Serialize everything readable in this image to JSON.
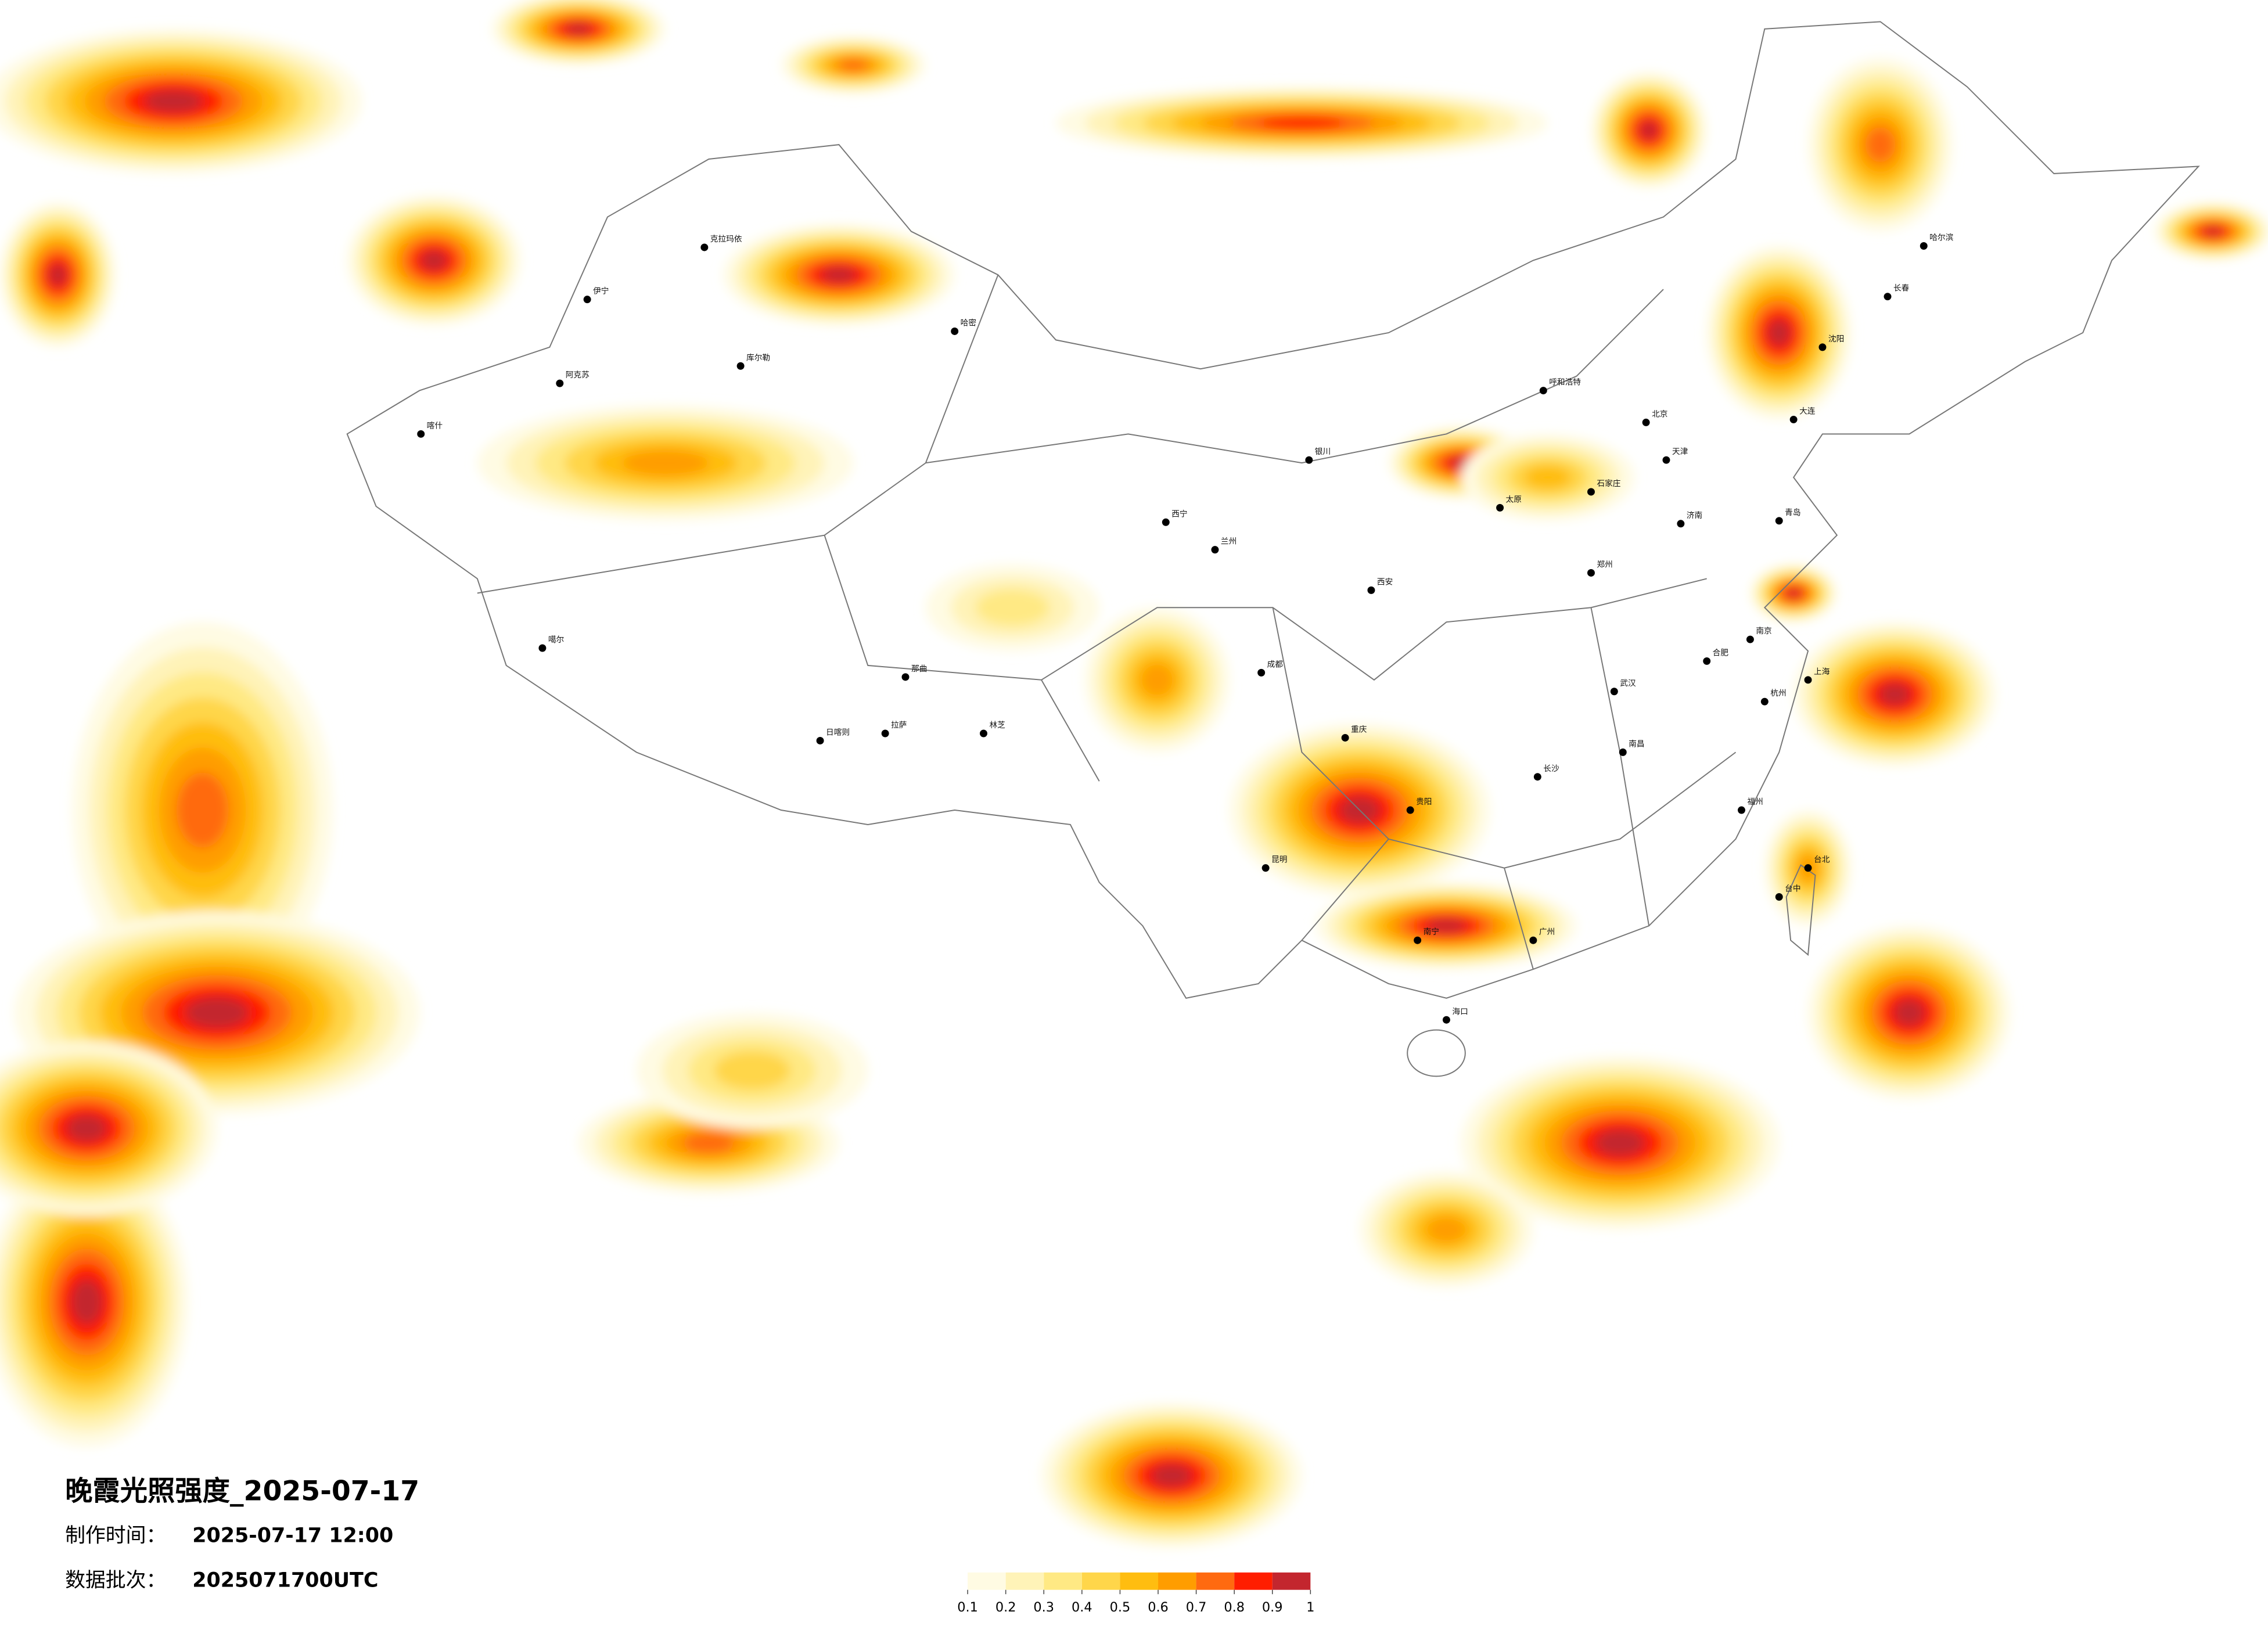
{
  "header": {
    "title": "晚霞光照强度_2025-07-17",
    "made_label": "制作时间：",
    "made_time": "2025-07-17 12:00",
    "batch_label": "数据批次：",
    "batch": "2025071700UTC"
  },
  "legend": {
    "ticks": [
      0.1,
      0.2,
      0.3,
      0.4,
      0.5,
      0.6,
      0.7,
      0.8,
      0.9,
      1
    ],
    "colors": [
      "#fffbe3",
      "#fff3b8",
      "#ffe984",
      "#ffd64a",
      "#ffbd10",
      "#ff9d00",
      "#ff6a10",
      "#ff1e00",
      "#c3262e"
    ]
  },
  "cities": [
    "克拉玛依",
    "伊宁",
    "阿克苏",
    "库尔勒",
    "哈密",
    "喀什",
    "噶尔",
    "日喀则",
    "拉萨",
    "那曲",
    "林芝",
    "西宁",
    "兰州",
    "银川",
    "呼和浩特",
    "北京",
    "天津",
    "石家庄",
    "太原",
    "西安",
    "郑州",
    "济南",
    "武汉",
    "长沙",
    "南昌",
    "合肥",
    "南京",
    "上海",
    "杭州",
    "福州",
    "广州",
    "南宁",
    "贵阳",
    "昆明",
    "成都",
    "重庆",
    "海口",
    "台北",
    "台中",
    "沈阳",
    "长春",
    "哈尔滨",
    "大连",
    "青岛"
  ]
}
